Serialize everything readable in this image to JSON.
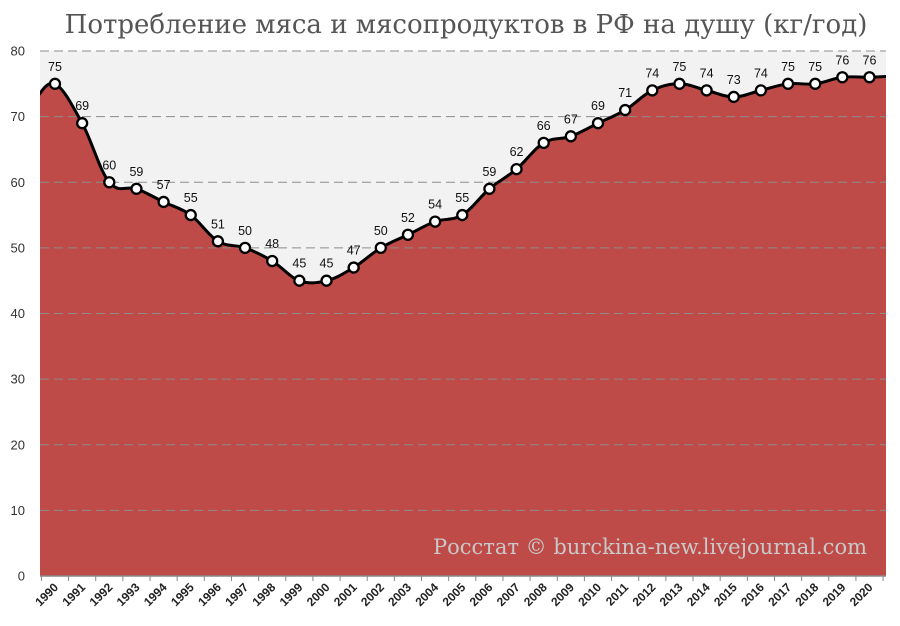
{
  "colors": {
    "area_fill": "#BE4B48",
    "plot_background": "#F2F2F2",
    "line": "#000000",
    "marker_fill": "#FFFFFF",
    "grid": "#8C8C8C",
    "title": "#555555"
  },
  "chart_data": {
    "type": "area",
    "title": "Потребление мяса и мясопродуктов в РФ на душу (кг/год)",
    "watermark": "Росстат © burckina-new.livejournal.com",
    "xlabel": "",
    "ylabel": "",
    "x": [
      "1990",
      "1991",
      "1992",
      "1993",
      "1994",
      "1995",
      "1996",
      "1997",
      "1998",
      "1999",
      "2000",
      "2001",
      "2002",
      "2003",
      "2004",
      "2005",
      "2006",
      "2007",
      "2008",
      "2009",
      "2010",
      "2011",
      "2012",
      "2013",
      "2014",
      "2015",
      "2016",
      "2017",
      "2018",
      "2019",
      "2020"
    ],
    "values": [
      75,
      69,
      60,
      59,
      57,
      55,
      51,
      50,
      48,
      45,
      45,
      47,
      50,
      52,
      54,
      55,
      59,
      62,
      66,
      67,
      69,
      71,
      74,
      75,
      74,
      73,
      74,
      75,
      75,
      76,
      76
    ],
    "data_labels": [
      "75",
      "69",
      "60",
      "59",
      "57",
      "55",
      "51",
      "50",
      "48",
      "45",
      "45",
      "47",
      "50",
      "52",
      "54",
      "55",
      "59",
      "62",
      "66",
      "67",
      "69",
      "71",
      "74",
      "75",
      "74",
      "73",
      "74",
      "75",
      "75",
      "76",
      "76"
    ],
    "ylim": [
      0,
      80
    ],
    "yticks": [
      "0",
      "10",
      "20",
      "30",
      "40",
      "50",
      "60",
      "70",
      "80"
    ],
    "grid": "horizontal dashed",
    "markers": "white circles",
    "smoothed": true
  }
}
